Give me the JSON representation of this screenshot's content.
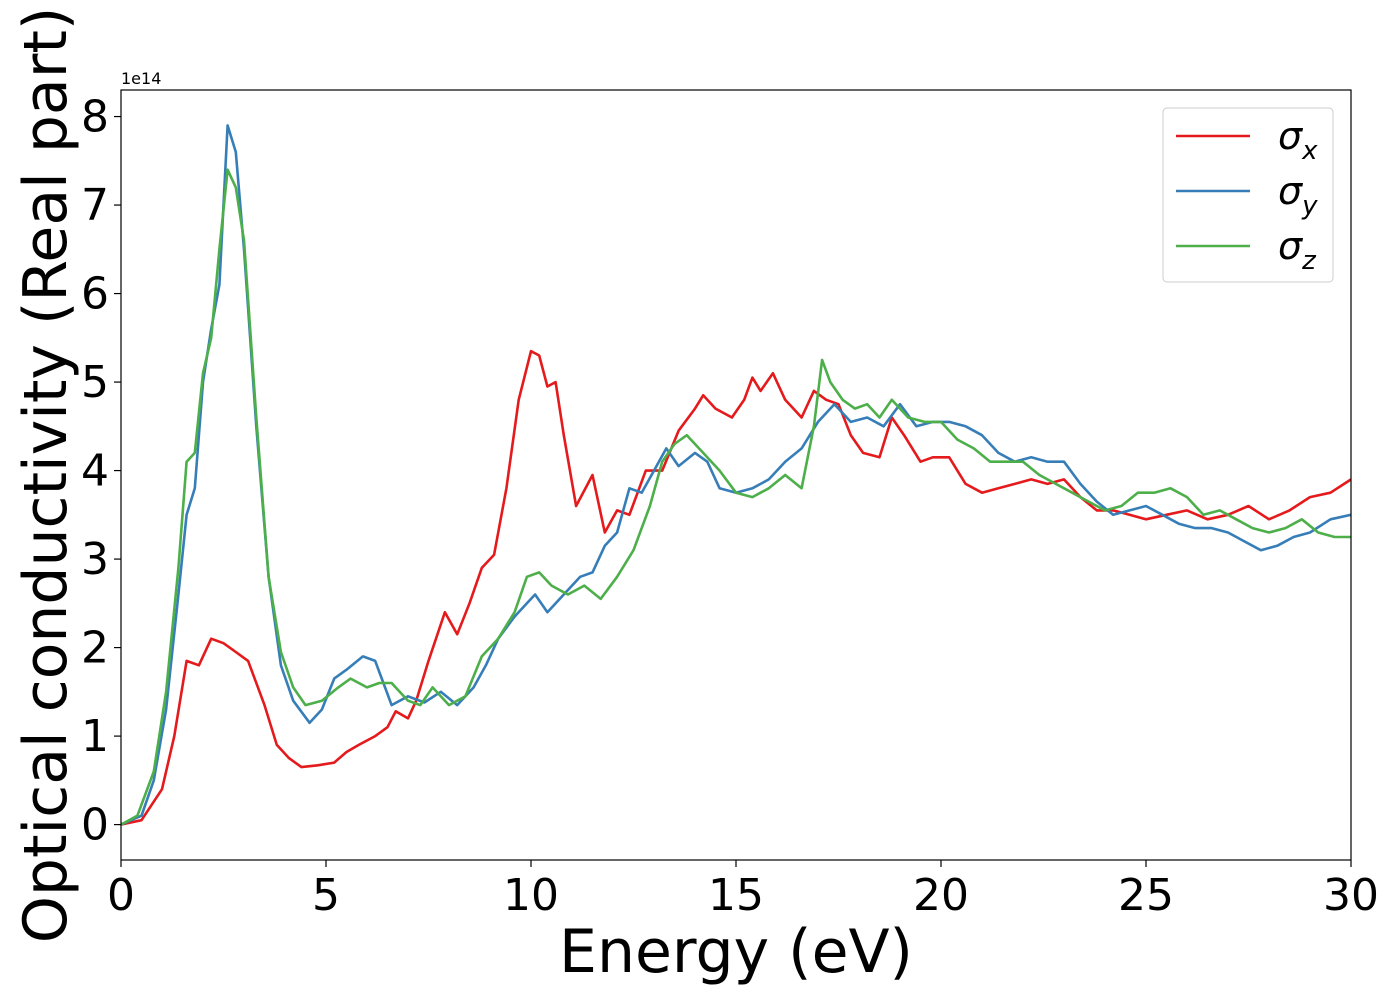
{
  "chart_data": {
    "type": "line",
    "xlabel": "Energy (eV)",
    "ylabel": "Optical conductivity (Real part)",
    "offset_text": "1e14",
    "xlim": [
      0,
      30
    ],
    "ylim": [
      -0.4,
      8.3
    ],
    "xticks": [
      0,
      5,
      10,
      15,
      20,
      25,
      30
    ],
    "xtick_labels": [
      "0",
      "5",
      "10",
      "15",
      "20",
      "25",
      "30"
    ],
    "yticks": [
      0,
      1,
      2,
      3,
      4,
      5,
      6,
      7,
      8
    ],
    "ytick_labels": [
      "0",
      "1",
      "2",
      "3",
      "4",
      "5",
      "6",
      "7",
      "8"
    ],
    "grid": false,
    "legend_position": "top-right",
    "series": [
      {
        "name": "σ",
        "subscript": "x",
        "color": "#e41a1c",
        "points": [
          [
            0,
            0
          ],
          [
            0.5,
            0.05
          ],
          [
            1,
            0.4
          ],
          [
            1.3,
            1.0
          ],
          [
            1.6,
            1.85
          ],
          [
            1.9,
            1.8
          ],
          [
            2.2,
            2.1
          ],
          [
            2.5,
            2.05
          ],
          [
            2.8,
            1.95
          ],
          [
            3.1,
            1.85
          ],
          [
            3.5,
            1.35
          ],
          [
            3.8,
            0.9
          ],
          [
            4.1,
            0.75
          ],
          [
            4.4,
            0.65
          ],
          [
            4.8,
            0.67
          ],
          [
            5.2,
            0.7
          ],
          [
            5.5,
            0.82
          ],
          [
            5.8,
            0.9
          ],
          [
            6.2,
            1.0
          ],
          [
            6.5,
            1.1
          ],
          [
            6.7,
            1.28
          ],
          [
            7.0,
            1.2
          ],
          [
            7.2,
            1.4
          ],
          [
            7.5,
            1.85
          ],
          [
            7.9,
            2.4
          ],
          [
            8.2,
            2.15
          ],
          [
            8.5,
            2.5
          ],
          [
            8.8,
            2.9
          ],
          [
            9.1,
            3.05
          ],
          [
            9.4,
            3.8
          ],
          [
            9.7,
            4.8
          ],
          [
            10.0,
            5.35
          ],
          [
            10.2,
            5.3
          ],
          [
            10.4,
            4.95
          ],
          [
            10.6,
            5.0
          ],
          [
            10.8,
            4.4
          ],
          [
            11.1,
            3.6
          ],
          [
            11.5,
            3.95
          ],
          [
            11.8,
            3.3
          ],
          [
            12.1,
            3.55
          ],
          [
            12.4,
            3.5
          ],
          [
            12.8,
            4.0
          ],
          [
            13.2,
            4.0
          ],
          [
            13.6,
            4.45
          ],
          [
            14.0,
            4.7
          ],
          [
            14.2,
            4.85
          ],
          [
            14.5,
            4.7
          ],
          [
            14.9,
            4.6
          ],
          [
            15.2,
            4.8
          ],
          [
            15.4,
            5.05
          ],
          [
            15.6,
            4.9
          ],
          [
            15.9,
            5.1
          ],
          [
            16.2,
            4.8
          ],
          [
            16.6,
            4.6
          ],
          [
            16.9,
            4.9
          ],
          [
            17.2,
            4.8
          ],
          [
            17.5,
            4.75
          ],
          [
            17.8,
            4.4
          ],
          [
            18.1,
            4.2
          ],
          [
            18.5,
            4.15
          ],
          [
            18.8,
            4.6
          ],
          [
            19.1,
            4.4
          ],
          [
            19.5,
            4.1
          ],
          [
            19.8,
            4.15
          ],
          [
            20.2,
            4.15
          ],
          [
            20.6,
            3.85
          ],
          [
            21.0,
            3.75
          ],
          [
            21.4,
            3.8
          ],
          [
            21.8,
            3.85
          ],
          [
            22.2,
            3.9
          ],
          [
            22.6,
            3.85
          ],
          [
            23.0,
            3.9
          ],
          [
            23.4,
            3.7
          ],
          [
            23.8,
            3.55
          ],
          [
            24.2,
            3.55
          ],
          [
            24.6,
            3.5
          ],
          [
            25.0,
            3.45
          ],
          [
            25.5,
            3.5
          ],
          [
            26.0,
            3.55
          ],
          [
            26.5,
            3.45
          ],
          [
            27.0,
            3.5
          ],
          [
            27.5,
            3.6
          ],
          [
            28.0,
            3.45
          ],
          [
            28.5,
            3.55
          ],
          [
            29.0,
            3.7
          ],
          [
            29.5,
            3.75
          ],
          [
            30,
            3.9
          ]
        ]
      },
      {
        "name": "σ",
        "subscript": "y",
        "color": "#377eb8",
        "points": [
          [
            0,
            0
          ],
          [
            0.5,
            0.1
          ],
          [
            0.8,
            0.5
          ],
          [
            1.1,
            1.3
          ],
          [
            1.4,
            2.6
          ],
          [
            1.6,
            3.5
          ],
          [
            1.8,
            3.8
          ],
          [
            2.0,
            5.0
          ],
          [
            2.2,
            5.6
          ],
          [
            2.4,
            6.1
          ],
          [
            2.6,
            7.9
          ],
          [
            2.8,
            7.6
          ],
          [
            3.0,
            6.5
          ],
          [
            3.3,
            4.5
          ],
          [
            3.6,
            2.8
          ],
          [
            3.9,
            1.8
          ],
          [
            4.2,
            1.4
          ],
          [
            4.6,
            1.15
          ],
          [
            4.9,
            1.3
          ],
          [
            5.2,
            1.65
          ],
          [
            5.5,
            1.75
          ],
          [
            5.9,
            1.9
          ],
          [
            6.2,
            1.85
          ],
          [
            6.6,
            1.35
          ],
          [
            7.0,
            1.45
          ],
          [
            7.4,
            1.38
          ],
          [
            7.8,
            1.5
          ],
          [
            8.2,
            1.35
          ],
          [
            8.6,
            1.55
          ],
          [
            8.9,
            1.8
          ],
          [
            9.2,
            2.1
          ],
          [
            9.6,
            2.35
          ],
          [
            9.9,
            2.5
          ],
          [
            10.1,
            2.6
          ],
          [
            10.4,
            2.4
          ],
          [
            10.8,
            2.6
          ],
          [
            11.2,
            2.8
          ],
          [
            11.5,
            2.85
          ],
          [
            11.8,
            3.15
          ],
          [
            12.1,
            3.3
          ],
          [
            12.4,
            3.8
          ],
          [
            12.7,
            3.75
          ],
          [
            13.0,
            4.0
          ],
          [
            13.3,
            4.25
          ],
          [
            13.6,
            4.05
          ],
          [
            14.0,
            4.2
          ],
          [
            14.3,
            4.1
          ],
          [
            14.6,
            3.8
          ],
          [
            15.0,
            3.75
          ],
          [
            15.4,
            3.8
          ],
          [
            15.8,
            3.9
          ],
          [
            16.2,
            4.1
          ],
          [
            16.6,
            4.25
          ],
          [
            17.0,
            4.55
          ],
          [
            17.4,
            4.75
          ],
          [
            17.8,
            4.55
          ],
          [
            18.2,
            4.6
          ],
          [
            18.6,
            4.5
          ],
          [
            19.0,
            4.75
          ],
          [
            19.4,
            4.5
          ],
          [
            19.8,
            4.55
          ],
          [
            20.2,
            4.55
          ],
          [
            20.6,
            4.5
          ],
          [
            21.0,
            4.4
          ],
          [
            21.4,
            4.2
          ],
          [
            21.8,
            4.1
          ],
          [
            22.2,
            4.15
          ],
          [
            22.6,
            4.1
          ],
          [
            23.0,
            4.1
          ],
          [
            23.4,
            3.85
          ],
          [
            23.8,
            3.65
          ],
          [
            24.2,
            3.5
          ],
          [
            24.6,
            3.55
          ],
          [
            25.0,
            3.6
          ],
          [
            25.4,
            3.5
          ],
          [
            25.8,
            3.4
          ],
          [
            26.2,
            3.35
          ],
          [
            26.6,
            3.35
          ],
          [
            27.0,
            3.3
          ],
          [
            27.4,
            3.2
          ],
          [
            27.8,
            3.1
          ],
          [
            28.2,
            3.15
          ],
          [
            28.6,
            3.25
          ],
          [
            29.0,
            3.3
          ],
          [
            29.5,
            3.45
          ],
          [
            30,
            3.5
          ]
        ]
      },
      {
        "name": "σ",
        "subscript": "z",
        "color": "#4daf4a",
        "points": [
          [
            0,
            0
          ],
          [
            0.4,
            0.1
          ],
          [
            0.8,
            0.6
          ],
          [
            1.1,
            1.5
          ],
          [
            1.4,
            2.9
          ],
          [
            1.6,
            4.1
          ],
          [
            1.8,
            4.2
          ],
          [
            2.0,
            5.1
          ],
          [
            2.2,
            5.5
          ],
          [
            2.4,
            6.5
          ],
          [
            2.6,
            7.4
          ],
          [
            2.8,
            7.2
          ],
          [
            3.0,
            6.6
          ],
          [
            3.3,
            4.6
          ],
          [
            3.6,
            2.8
          ],
          [
            3.9,
            1.95
          ],
          [
            4.2,
            1.55
          ],
          [
            4.5,
            1.35
          ],
          [
            4.9,
            1.4
          ],
          [
            5.3,
            1.55
          ],
          [
            5.6,
            1.65
          ],
          [
            6.0,
            1.55
          ],
          [
            6.3,
            1.6
          ],
          [
            6.6,
            1.6
          ],
          [
            7.0,
            1.4
          ],
          [
            7.3,
            1.35
          ],
          [
            7.6,
            1.55
          ],
          [
            8.0,
            1.35
          ],
          [
            8.4,
            1.45
          ],
          [
            8.8,
            1.9
          ],
          [
            9.2,
            2.1
          ],
          [
            9.6,
            2.4
          ],
          [
            9.9,
            2.8
          ],
          [
            10.2,
            2.85
          ],
          [
            10.5,
            2.7
          ],
          [
            10.9,
            2.6
          ],
          [
            11.3,
            2.7
          ],
          [
            11.7,
            2.55
          ],
          [
            12.1,
            2.8
          ],
          [
            12.5,
            3.1
          ],
          [
            12.9,
            3.6
          ],
          [
            13.2,
            4.1
          ],
          [
            13.5,
            4.3
          ],
          [
            13.8,
            4.4
          ],
          [
            14.2,
            4.2
          ],
          [
            14.6,
            4.0
          ],
          [
            15.0,
            3.75
          ],
          [
            15.4,
            3.7
          ],
          [
            15.8,
            3.8
          ],
          [
            16.2,
            3.95
          ],
          [
            16.6,
            3.8
          ],
          [
            16.9,
            4.5
          ],
          [
            17.1,
            5.25
          ],
          [
            17.3,
            5.0
          ],
          [
            17.6,
            4.8
          ],
          [
            17.9,
            4.7
          ],
          [
            18.2,
            4.75
          ],
          [
            18.5,
            4.6
          ],
          [
            18.8,
            4.8
          ],
          [
            19.2,
            4.6
          ],
          [
            19.6,
            4.55
          ],
          [
            20.0,
            4.55
          ],
          [
            20.4,
            4.35
          ],
          [
            20.8,
            4.25
          ],
          [
            21.2,
            4.1
          ],
          [
            21.6,
            4.1
          ],
          [
            22.0,
            4.1
          ],
          [
            22.4,
            3.95
          ],
          [
            22.8,
            3.85
          ],
          [
            23.2,
            3.75
          ],
          [
            23.6,
            3.65
          ],
          [
            24.0,
            3.55
          ],
          [
            24.4,
            3.6
          ],
          [
            24.8,
            3.75
          ],
          [
            25.2,
            3.75
          ],
          [
            25.6,
            3.8
          ],
          [
            26.0,
            3.7
          ],
          [
            26.4,
            3.5
          ],
          [
            26.8,
            3.55
          ],
          [
            27.2,
            3.45
          ],
          [
            27.6,
            3.35
          ],
          [
            28.0,
            3.3
          ],
          [
            28.4,
            3.35
          ],
          [
            28.8,
            3.45
          ],
          [
            29.2,
            3.3
          ],
          [
            29.6,
            3.25
          ],
          [
            30,
            3.25
          ]
        ]
      }
    ]
  }
}
